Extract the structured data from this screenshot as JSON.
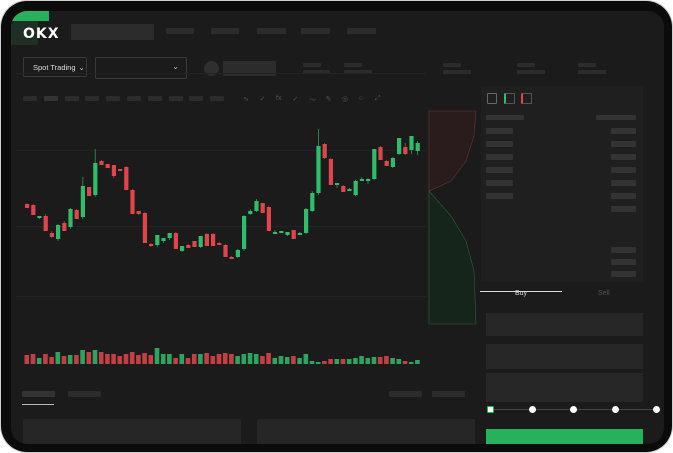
{
  "header": {
    "logo": "OKX"
  },
  "toolbar": {
    "market_select": "Spot Trading",
    "pair_select": "",
    "tool_icons": [
      "candle-wave-icon",
      "check-icon",
      "fx-icon",
      "check-icon",
      "line-icon",
      "pencil-icon",
      "target-icon",
      "circle-icon",
      "expand-icon"
    ]
  },
  "colors": {
    "up": "#2ebd6b",
    "down": "#e0454b",
    "accent": "#24b35c",
    "background": "#1b1b1b"
  },
  "chart_data": {
    "type": "candlestick",
    "candles": [
      [
        97,
        98,
        93,
        93
      ],
      [
        96,
        97,
        86,
        86
      ],
      [
        83,
        85,
        82,
        85
      ],
      [
        85,
        87,
        70,
        70
      ],
      [
        68,
        70,
        63,
        64
      ],
      [
        62,
        77,
        60,
        76
      ],
      [
        78,
        80,
        70,
        70
      ],
      [
        74,
        93,
        72,
        92
      ],
      [
        91,
        92,
        82,
        82
      ],
      [
        84,
        124,
        82,
        115
      ],
      [
        114,
        114,
        105,
        105
      ],
      [
        106,
        152,
        104,
        138
      ],
      [
        140,
        141,
        136,
        136
      ],
      [
        137,
        137,
        133,
        133
      ],
      [
        136,
        136,
        123,
        125
      ],
      [
        132,
        132,
        130,
        130
      ],
      [
        134,
        135,
        111,
        111
      ],
      [
        111,
        112,
        87,
        87
      ],
      [
        90,
        90,
        86,
        87
      ],
      [
        88,
        89,
        58,
        58
      ],
      [
        57,
        58,
        54,
        56
      ],
      [
        56,
        66,
        54,
        66
      ],
      [
        60,
        63,
        58,
        63
      ],
      [
        63,
        68,
        61,
        68
      ],
      [
        68,
        69,
        52,
        52
      ],
      [
        50,
        55,
        49,
        55
      ],
      [
        56,
        57,
        53,
        53
      ],
      [
        60,
        60,
        54,
        54
      ],
      [
        54,
        65,
        53,
        65
      ],
      [
        67,
        68,
        55,
        55
      ],
      [
        67,
        68,
        55,
        55
      ],
      [
        58,
        59,
        57,
        57
      ],
      [
        56,
        57,
        44,
        44
      ],
      [
        44,
        45,
        43,
        43
      ],
      [
        44,
        52,
        43,
        51
      ],
      [
        52,
        86,
        50,
        85
      ],
      [
        87,
        92,
        86,
        90
      ],
      [
        90,
        102,
        89,
        100
      ],
      [
        98,
        98,
        88,
        88
      ],
      [
        94,
        95,
        70,
        70
      ],
      [
        69,
        71,
        67,
        69
      ],
      [
        68,
        70,
        68,
        70
      ],
      [
        66,
        69,
        65,
        69
      ],
      [
        71,
        71,
        62,
        62
      ],
      [
        68,
        69,
        67,
        68
      ],
      [
        68,
        93,
        67,
        92
      ],
      [
        90,
        110,
        89,
        108
      ],
      [
        108,
        172,
        106,
        155
      ],
      [
        157,
        158,
        142,
        143
      ],
      [
        142,
        143,
        116,
        116
      ],
      [
        118,
        118,
        113,
        118
      ],
      [
        115,
        116,
        109,
        109
      ],
      [
        112,
        113,
        110,
        112
      ],
      [
        106,
        121,
        105,
        120
      ],
      [
        120,
        124,
        121,
        122
      ],
      [
        122,
        123,
        117,
        122
      ],
      [
        122,
        152,
        121,
        152
      ],
      [
        154,
        155,
        141,
        141
      ],
      [
        140,
        141,
        135,
        135
      ],
      [
        134,
        144,
        133,
        143
      ],
      [
        147,
        163,
        146,
        163
      ],
      [
        154,
        158,
        146,
        147
      ],
      [
        151,
        165,
        147,
        165
      ],
      [
        150,
        160,
        146,
        158
      ]
    ],
    "volume": [
      9,
      10,
      6,
      10,
      7,
      12,
      8,
      9,
      9,
      14,
      12,
      14,
      12,
      10,
      10,
      8,
      10,
      12,
      9,
      11,
      9,
      16,
      10,
      10,
      6,
      10,
      6,
      10,
      10,
      11,
      8,
      10,
      11,
      10,
      8,
      10,
      11,
      10,
      8,
      11,
      6,
      8,
      7,
      8,
      6,
      10,
      3,
      2,
      3,
      5,
      5,
      5,
      5,
      6,
      8,
      6,
      7,
      7,
      8,
      6,
      5,
      3,
      2,
      4
    ]
  },
  "orderbook": {
    "active_highlight": true
  },
  "trade": {
    "tabs": [
      {
        "label": "Buy",
        "active": true
      },
      {
        "label": "Sell",
        "active": false
      }
    ],
    "slider_percent": 0,
    "slider_stops": [
      0,
      25,
      50,
      75,
      100
    ]
  }
}
